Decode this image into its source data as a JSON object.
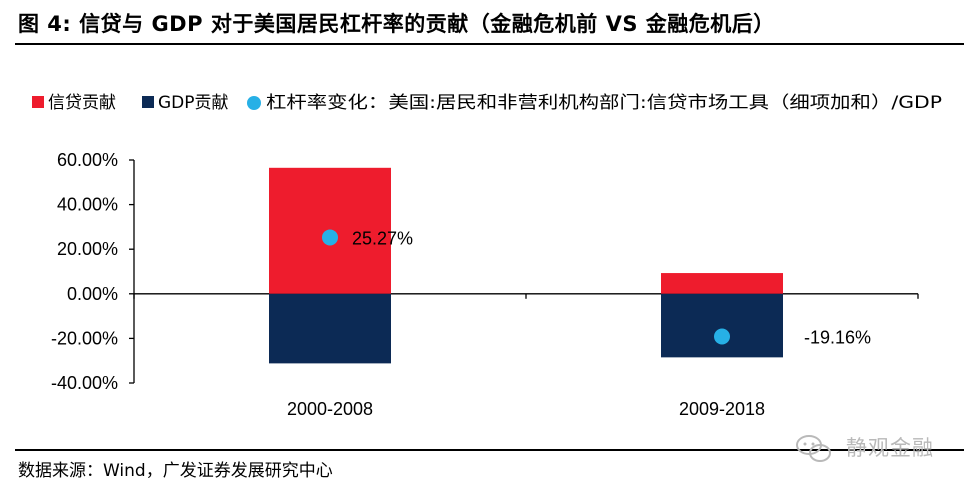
{
  "title": "图 4:  信贷与 GDP 对于美国居民杠杆率的贡献（金融危机前 VS 金融危机后）",
  "source": "数据来源：Wind，广发证券发展研究中心",
  "watermark": "静观金融",
  "colors": {
    "credit": "#ee1c2d",
    "gdp": "#0c2a55",
    "leverage": "#27b0e6",
    "axis": "#000000"
  },
  "chart_data": {
    "type": "bar",
    "stacked": true,
    "categories": [
      "2000-2008",
      "2009-2018"
    ],
    "series": [
      {
        "name": "信贷贡献",
        "values": [
          56.5,
          9.3
        ]
      },
      {
        "name": "GDP贡献",
        "values": [
          -31.2,
          -28.5
        ]
      }
    ],
    "overlay": {
      "name": "杠杆率变化：美国:居民和非营利机构部门:信贷市场工具（细项加和）/GDP",
      "type": "scatter",
      "values": [
        25.27,
        -19.16
      ],
      "labels": [
        "25.27%",
        "-19.16%"
      ]
    },
    "yticks": [
      "60.00%",
      "40.00%",
      "20.00%",
      "0.00%",
      "-20.00%",
      "-40.00%"
    ],
    "ylim": [
      -40,
      60
    ],
    "legend_position": "top",
    "grid": false
  }
}
